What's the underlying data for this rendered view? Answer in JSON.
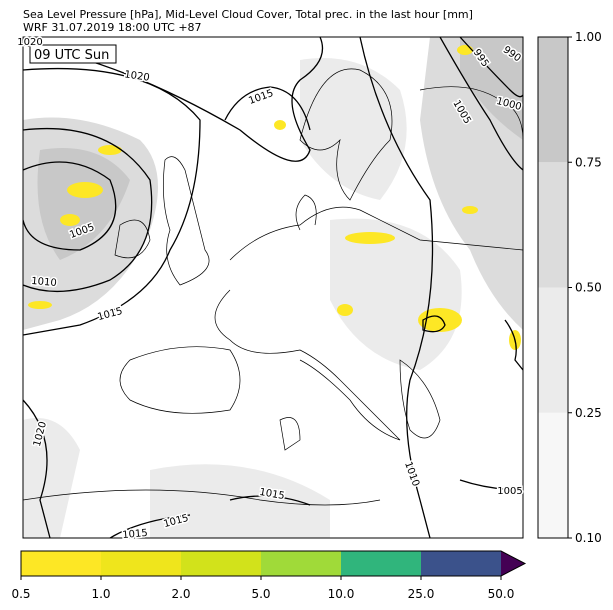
{
  "header": {
    "title_lines": [
      "Sea Level Pressure [hPa], Mid-Level Cloud Cover, Total prec. in the last hour [mm]",
      "WRF 31.07.2019 18:00 UTC +87"
    ]
  },
  "map": {
    "time_label": "09 UTC Sun",
    "isobar_labels": [
      "1020",
      "990",
      "995",
      "1020",
      "1015",
      "1005",
      "1000",
      "1005",
      "1010",
      "1015",
      "1020",
      "1010",
      "1015",
      "1005",
      "1015",
      "1015"
    ]
  },
  "cloud_colorbar": {
    "ticks": [
      "0.10",
      "0.25",
      "0.50",
      "0.75",
      "1.00"
    ],
    "colors": [
      "#f7f7f7",
      "#ebebeb",
      "#dcdcdc",
      "#c8c8c8"
    ]
  },
  "precip_colorbar": {
    "ticks": [
      "0.5",
      "1.0",
      "2.0",
      "5.0",
      "10.0",
      "25.0",
      "50.0"
    ],
    "colors": [
      "#fde725",
      "#efe51c",
      "#d2e21b",
      "#a0da39",
      "#30b57c",
      "#3b528b"
    ],
    "extend_color": "#440154"
  }
}
